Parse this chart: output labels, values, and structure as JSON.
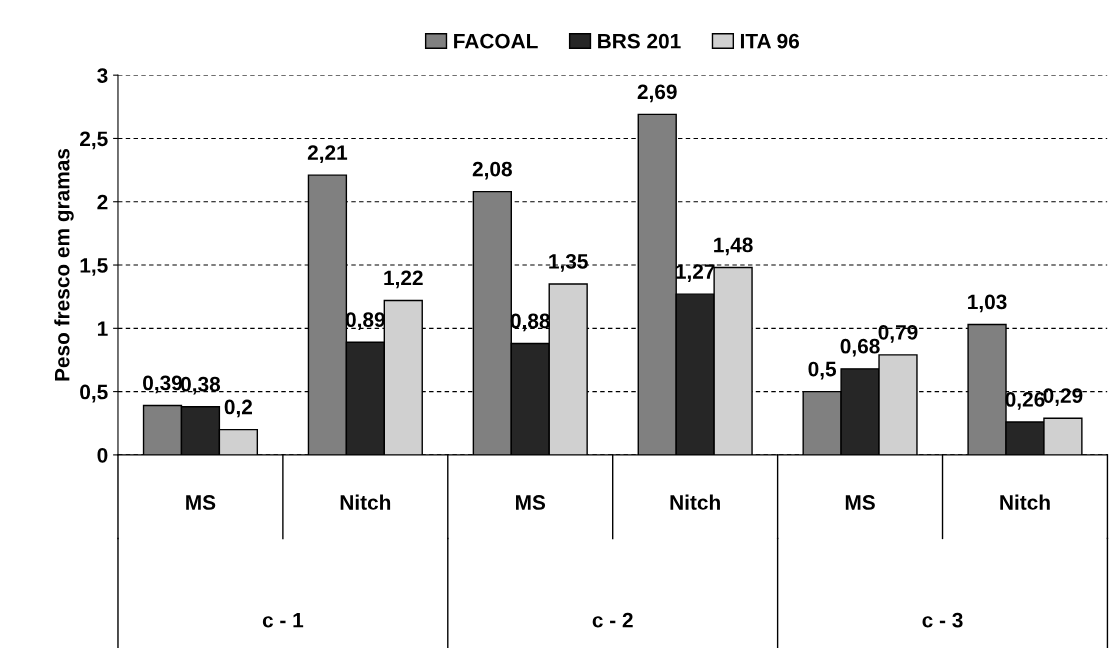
{
  "chart_data": {
    "type": "bar",
    "ylabel": "Peso fresco em gramas",
    "categories": [
      "MS",
      "Nitch",
      "MS",
      "Nitch",
      "MS",
      "Nitch"
    ],
    "annotations": [
      "c - 1",
      "c - 2",
      "c - 3"
    ],
    "series": [
      {
        "name": "FACOAL",
        "color": "#808080",
        "values": [
          0.39,
          2.21,
          2.08,
          2.69,
          0.5,
          1.03
        ],
        "value_labels": [
          "0,39",
          "2,21",
          "2,08",
          "2,69",
          "0,5",
          "1,03"
        ]
      },
      {
        "name": "BRS 201",
        "color": "#262626",
        "values": [
          0.38,
          0.89,
          0.88,
          1.27,
          0.68,
          0.26
        ],
        "value_labels": [
          "0,38",
          "0,89",
          "0,88",
          "1,27",
          "0,68",
          "0,26"
        ]
      },
      {
        "name": "ITA 96",
        "color": "#d0d0d0",
        "values": [
          0.2,
          1.22,
          1.35,
          1.48,
          0.79,
          0.29
        ],
        "value_labels": [
          "0,2",
          "1,22",
          "1,35",
          "1,48",
          "0,79",
          "0,29"
        ]
      }
    ],
    "ylim": [
      0,
      3
    ],
    "yticks": [
      0,
      {
        "value": 0.5,
        "label": "0,5"
      },
      1,
      {
        "value": 1.5,
        "label": "1,5"
      },
      2,
      {
        "value": 2.5,
        "label": "2,5"
      },
      3
    ],
    "grid": "y",
    "legend": "top"
  }
}
